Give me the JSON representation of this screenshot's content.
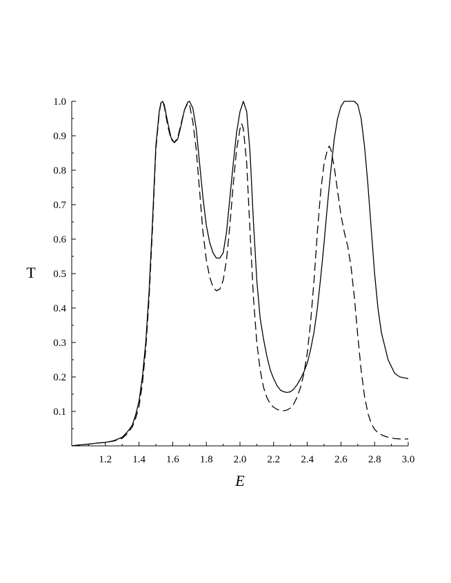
{
  "chart_data": {
    "type": "line",
    "title": "",
    "xlabel": "E",
    "ylabel": "T",
    "xlim": [
      1.0,
      3.0
    ],
    "ylim": [
      0.0,
      1.0
    ],
    "x_ticks": [
      "1.2",
      "1.4",
      "1.6",
      "1.8",
      "2.0",
      "2.2",
      "2.4",
      "2.6",
      "2.8",
      "3.0"
    ],
    "y_ticks": [
      "0.1",
      "0.2",
      "0.3",
      "0.4",
      "0.5",
      "0.6",
      "0.7",
      "0.8",
      "0.9",
      "1.0"
    ],
    "grid": false,
    "legend": "none",
    "series": [
      {
        "style": "solid",
        "color": "#000000",
        "points": [
          [
            1.0,
            0.0
          ],
          [
            1.05,
            0.003
          ],
          [
            1.1,
            0.005
          ],
          [
            1.15,
            0.008
          ],
          [
            1.2,
            0.01
          ],
          [
            1.25,
            0.015
          ],
          [
            1.3,
            0.025
          ],
          [
            1.33,
            0.04
          ],
          [
            1.36,
            0.06
          ],
          [
            1.38,
            0.09
          ],
          [
            1.4,
            0.13
          ],
          [
            1.42,
            0.2
          ],
          [
            1.44,
            0.3
          ],
          [
            1.46,
            0.45
          ],
          [
            1.48,
            0.65
          ],
          [
            1.5,
            0.87
          ],
          [
            1.52,
            0.97
          ],
          [
            1.53,
            0.995
          ],
          [
            1.54,
            1.0
          ],
          [
            1.55,
            0.99
          ],
          [
            1.57,
            0.94
          ],
          [
            1.59,
            0.895
          ],
          [
            1.61,
            0.88
          ],
          [
            1.63,
            0.89
          ],
          [
            1.65,
            0.93
          ],
          [
            1.67,
            0.975
          ],
          [
            1.69,
            0.998
          ],
          [
            1.7,
            1.0
          ],
          [
            1.72,
            0.98
          ],
          [
            1.74,
            0.92
          ],
          [
            1.76,
            0.82
          ],
          [
            1.78,
            0.72
          ],
          [
            1.8,
            0.64
          ],
          [
            1.82,
            0.59
          ],
          [
            1.84,
            0.56
          ],
          [
            1.86,
            0.545
          ],
          [
            1.88,
            0.545
          ],
          [
            1.9,
            0.56
          ],
          [
            1.92,
            0.62
          ],
          [
            1.94,
            0.72
          ],
          [
            1.96,
            0.82
          ],
          [
            1.98,
            0.91
          ],
          [
            2.0,
            0.97
          ],
          [
            2.02,
            1.0
          ],
          [
            2.04,
            0.97
          ],
          [
            2.06,
            0.85
          ],
          [
            2.08,
            0.65
          ],
          [
            2.1,
            0.48
          ],
          [
            2.12,
            0.37
          ],
          [
            2.14,
            0.31
          ],
          [
            2.16,
            0.26
          ],
          [
            2.18,
            0.22
          ],
          [
            2.2,
            0.195
          ],
          [
            2.22,
            0.175
          ],
          [
            2.24,
            0.162
          ],
          [
            2.26,
            0.157
          ],
          [
            2.28,
            0.155
          ],
          [
            2.3,
            0.157
          ],
          [
            2.32,
            0.165
          ],
          [
            2.34,
            0.178
          ],
          [
            2.36,
            0.195
          ],
          [
            2.38,
            0.215
          ],
          [
            2.4,
            0.24
          ],
          [
            2.42,
            0.28
          ],
          [
            2.44,
            0.33
          ],
          [
            2.46,
            0.4
          ],
          [
            2.48,
            0.49
          ],
          [
            2.5,
            0.59
          ],
          [
            2.52,
            0.7
          ],
          [
            2.54,
            0.8
          ],
          [
            2.56,
            0.89
          ],
          [
            2.58,
            0.95
          ],
          [
            2.6,
            0.985
          ],
          [
            2.62,
            1.0
          ],
          [
            2.64,
            1.0
          ],
          [
            2.66,
            1.0
          ],
          [
            2.68,
            1.0
          ],
          [
            2.7,
            0.99
          ],
          [
            2.72,
            0.95
          ],
          [
            2.74,
            0.87
          ],
          [
            2.76,
            0.76
          ],
          [
            2.78,
            0.63
          ],
          [
            2.8,
            0.5
          ],
          [
            2.82,
            0.4
          ],
          [
            2.84,
            0.33
          ],
          [
            2.86,
            0.29
          ],
          [
            2.88,
            0.25
          ],
          [
            2.9,
            0.23
          ],
          [
            2.92,
            0.21
          ],
          [
            2.95,
            0.2
          ],
          [
            2.98,
            0.197
          ],
          [
            3.0,
            0.195
          ]
        ]
      },
      {
        "style": "dashed",
        "color": "#000000",
        "points": [
          [
            1.0,
            0.0
          ],
          [
            1.05,
            0.003
          ],
          [
            1.1,
            0.005
          ],
          [
            1.15,
            0.008
          ],
          [
            1.2,
            0.01
          ],
          [
            1.25,
            0.014
          ],
          [
            1.3,
            0.022
          ],
          [
            1.33,
            0.035
          ],
          [
            1.36,
            0.055
          ],
          [
            1.38,
            0.08
          ],
          [
            1.4,
            0.115
          ],
          [
            1.42,
            0.18
          ],
          [
            1.44,
            0.28
          ],
          [
            1.46,
            0.43
          ],
          [
            1.48,
            0.63
          ],
          [
            1.5,
            0.86
          ],
          [
            1.52,
            0.965
          ],
          [
            1.53,
            0.995
          ],
          [
            1.54,
            1.0
          ],
          [
            1.55,
            0.985
          ],
          [
            1.57,
            0.93
          ],
          [
            1.59,
            0.89
          ],
          [
            1.61,
            0.88
          ],
          [
            1.63,
            0.895
          ],
          [
            1.65,
            0.935
          ],
          [
            1.67,
            0.975
          ],
          [
            1.69,
            0.995
          ],
          [
            1.7,
            0.99
          ],
          [
            1.72,
            0.94
          ],
          [
            1.74,
            0.86
          ],
          [
            1.76,
            0.74
          ],
          [
            1.78,
            0.62
          ],
          [
            1.8,
            0.54
          ],
          [
            1.82,
            0.49
          ],
          [
            1.84,
            0.46
          ],
          [
            1.86,
            0.45
          ],
          [
            1.88,
            0.455
          ],
          [
            1.9,
            0.48
          ],
          [
            1.92,
            0.54
          ],
          [
            1.94,
            0.64
          ],
          [
            1.96,
            0.76
          ],
          [
            1.98,
            0.86
          ],
          [
            2.0,
            0.92
          ],
          [
            2.01,
            0.935
          ],
          [
            2.02,
            0.92
          ],
          [
            2.04,
            0.82
          ],
          [
            2.06,
            0.62
          ],
          [
            2.08,
            0.43
          ],
          [
            2.1,
            0.3
          ],
          [
            2.12,
            0.22
          ],
          [
            2.14,
            0.17
          ],
          [
            2.16,
            0.14
          ],
          [
            2.18,
            0.122
          ],
          [
            2.2,
            0.112
          ],
          [
            2.22,
            0.106
          ],
          [
            2.24,
            0.103
          ],
          [
            2.26,
            0.102
          ],
          [
            2.28,
            0.104
          ],
          [
            2.3,
            0.11
          ],
          [
            2.32,
            0.122
          ],
          [
            2.34,
            0.142
          ],
          [
            2.36,
            0.17
          ],
          [
            2.38,
            0.21
          ],
          [
            2.4,
            0.27
          ],
          [
            2.42,
            0.36
          ],
          [
            2.44,
            0.48
          ],
          [
            2.46,
            0.62
          ],
          [
            2.48,
            0.74
          ],
          [
            2.5,
            0.82
          ],
          [
            2.52,
            0.86
          ],
          [
            2.53,
            0.87
          ],
          [
            2.54,
            0.86
          ],
          [
            2.56,
            0.81
          ],
          [
            2.58,
            0.74
          ],
          [
            2.6,
            0.67
          ],
          [
            2.62,
            0.62
          ],
          [
            2.64,
            0.58
          ],
          [
            2.66,
            0.52
          ],
          [
            2.68,
            0.43
          ],
          [
            2.7,
            0.32
          ],
          [
            2.72,
            0.22
          ],
          [
            2.74,
            0.145
          ],
          [
            2.76,
            0.095
          ],
          [
            2.78,
            0.065
          ],
          [
            2.8,
            0.048
          ],
          [
            2.82,
            0.038
          ],
          [
            2.85,
            0.03
          ],
          [
            2.88,
            0.025
          ],
          [
            2.92,
            0.021
          ],
          [
            2.96,
            0.02
          ],
          [
            3.0,
            0.02
          ]
        ]
      }
    ]
  }
}
